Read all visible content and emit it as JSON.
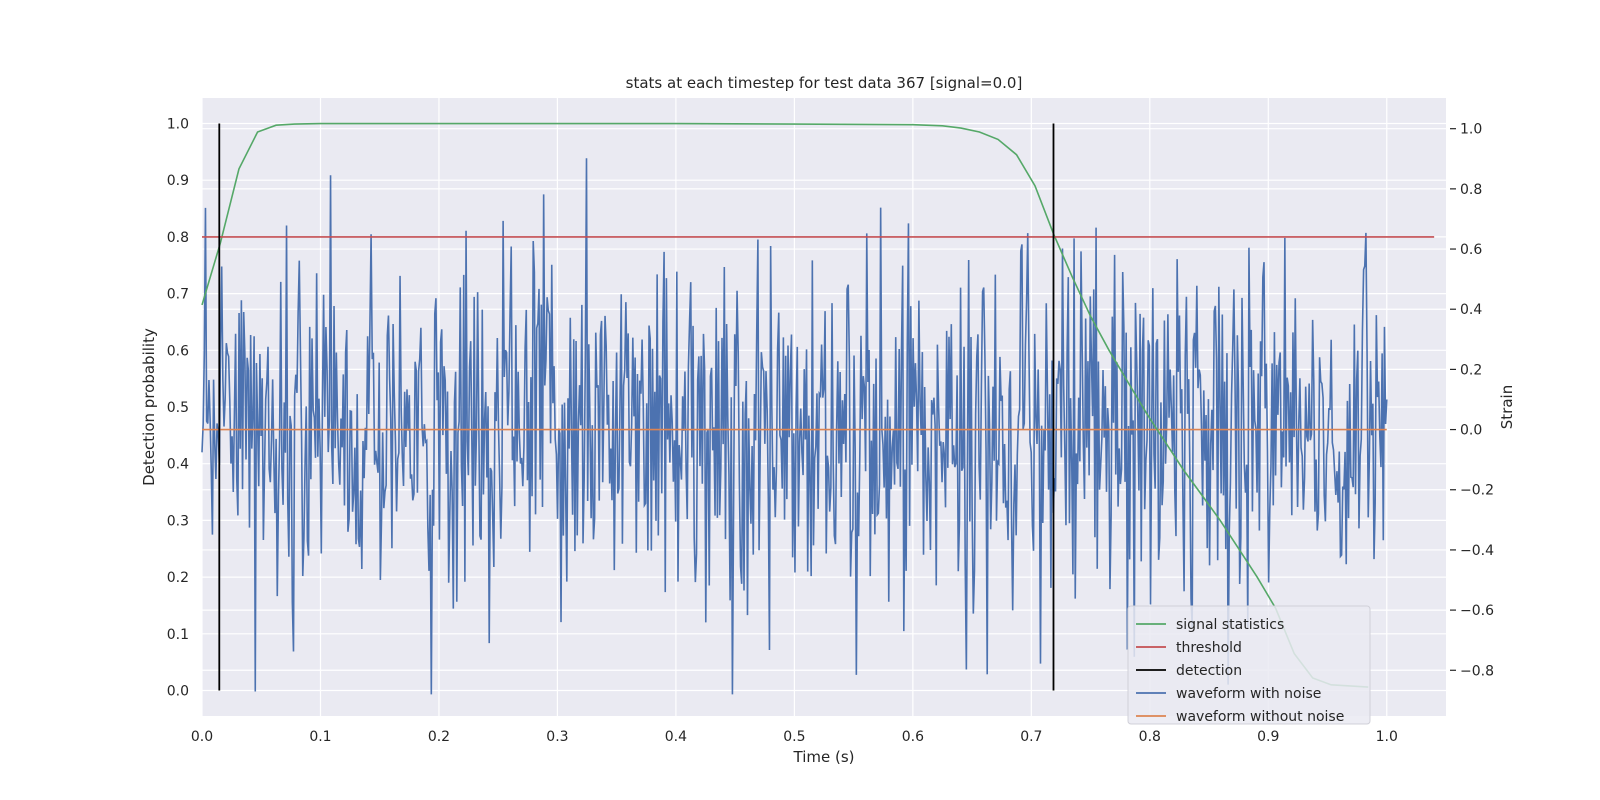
{
  "chart_data": {
    "type": "line",
    "title": "stats at each timestep for test data 367 [signal=0.0]",
    "xlabel": "Time (s)",
    "ylabel": "Detection probability",
    "y2label": "Strain",
    "xlim": [
      0.0,
      1.05
    ],
    "ylim": [
      -0.045,
      1.045
    ],
    "y2lim": [
      -0.952,
      1.102
    ],
    "xticks": [
      0.0,
      0.1,
      0.2,
      0.3,
      0.4,
      0.5,
      0.6,
      0.7,
      0.8,
      0.9,
      1.0
    ],
    "yticks": [
      0.0,
      0.1,
      0.2,
      0.3,
      0.4,
      0.5,
      0.6,
      0.7,
      0.8,
      0.9,
      1.0
    ],
    "y2ticks": [
      -0.8,
      -0.6,
      -0.4,
      -0.2,
      0.0,
      0.2,
      0.4,
      0.6,
      0.8,
      1.0
    ],
    "grid": true,
    "legend_position": "lower-right",
    "colors": {
      "background": "#eaeaf2",
      "grid": "#ffffff",
      "signal": "#55a868",
      "threshold": "#c44e52",
      "detection": "#000000",
      "noise": "#4c72b0",
      "clean": "#dd8452"
    },
    "series": [
      {
        "name": "signal statistics",
        "axis": "left",
        "x": [
          0.0,
          0.0156,
          0.0312,
          0.0469,
          0.0625,
          0.0781,
          0.1,
          0.2,
          0.3,
          0.4,
          0.5,
          0.6,
          0.625,
          0.6406,
          0.6562,
          0.6719,
          0.6875,
          0.7031,
          0.7188,
          0.7344,
          0.75,
          0.7656,
          0.7812,
          0.7969,
          0.8125,
          0.8281,
          0.8438,
          0.8594,
          0.875,
          0.8906,
          0.9062,
          0.9219,
          0.9375,
          0.9531,
          0.9688,
          0.9844
        ],
        "values": [
          0.68,
          0.79,
          0.92,
          0.985,
          0.997,
          0.999,
          1.0,
          1.0,
          1.0,
          1.0,
          0.999,
          0.998,
          0.996,
          0.992,
          0.985,
          0.972,
          0.945,
          0.89,
          0.805,
          0.73,
          0.66,
          0.6,
          0.545,
          0.49,
          0.44,
          0.39,
          0.345,
          0.3,
          0.25,
          0.2,
          0.145,
          0.065,
          0.022,
          0.01,
          0.008,
          0.006
        ]
      },
      {
        "name": "threshold",
        "axis": "left",
        "x": [
          0.0,
          1.04
        ],
        "values": [
          0.8,
          0.8
        ]
      },
      {
        "name": "detection",
        "axis": "left",
        "x": [
          0.0146,
          0.7187
        ],
        "values": [
          1.0,
          1.0
        ]
      },
      {
        "name": "waveform with noise",
        "axis": "right",
        "noise_seed": 367,
        "x_range": [
          0.0,
          1.0
        ],
        "value_range": [
          -0.88,
          1.0
        ]
      },
      {
        "name": "waveform without noise",
        "axis": "right",
        "x": [
          0.0,
          1.0
        ],
        "values": [
          0.0,
          0.0
        ]
      }
    ]
  }
}
